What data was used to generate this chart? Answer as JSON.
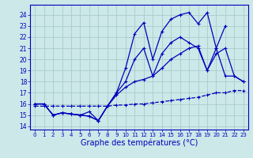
{
  "bg_color": "#cce8e8",
  "grid_color": "#aacccc",
  "line_color": "#0000bb",
  "xlabel": "Graphe des températures (°C)",
  "xlabel_fontsize": 7,
  "xlim": [
    -0.5,
    23.5
  ],
  "ylim": [
    13.7,
    24.9
  ],
  "yticks": [
    14,
    15,
    16,
    17,
    18,
    19,
    20,
    21,
    22,
    23,
    24
  ],
  "xtick_labels": [
    "0",
    "1",
    "2",
    "3",
    "4",
    "5",
    "6",
    "7",
    "8",
    "9",
    "10",
    "11",
    "12",
    "13",
    "14",
    "15",
    "16",
    "17",
    "18",
    "19",
    "20",
    "21",
    "22",
    "23"
  ],
  "series": [
    {
      "x": [
        0,
        1,
        2,
        3,
        4,
        5,
        6,
        7,
        8,
        9,
        10,
        11,
        12,
        13,
        14,
        15,
        16,
        17,
        18,
        19,
        20,
        21
      ],
      "y": [
        16.0,
        16.0,
        15.0,
        15.2,
        15.1,
        15.0,
        14.9,
        14.5,
        15.8,
        17.0,
        19.2,
        22.3,
        23.3,
        20.0,
        22.5,
        23.6,
        24.0,
        24.2,
        23.2,
        24.2,
        21.0,
        23.0
      ],
      "style": "solid"
    },
    {
      "x": [
        0,
        1,
        2,
        3,
        4,
        5,
        6,
        7,
        8,
        9,
        10,
        11,
        12,
        13,
        14,
        15,
        16,
        17,
        18,
        19,
        20,
        21,
        22,
        23
      ],
      "y": [
        16.0,
        16.0,
        15.0,
        15.2,
        15.1,
        15.0,
        14.9,
        14.5,
        15.8,
        17.0,
        18.0,
        20.0,
        21.0,
        18.5,
        20.5,
        21.5,
        22.0,
        21.5,
        21.0,
        19.0,
        20.5,
        21.0,
        18.5,
        18.0
      ],
      "style": "solid"
    },
    {
      "x": [
        0,
        1,
        2,
        3,
        4,
        5,
        6,
        7,
        8,
        9,
        10,
        11,
        12,
        13,
        14,
        15,
        16,
        17,
        18,
        19,
        20,
        21,
        22,
        23
      ],
      "y": [
        16.0,
        16.0,
        15.0,
        15.2,
        15.1,
        15.0,
        15.3,
        14.5,
        15.8,
        16.8,
        17.5,
        18.0,
        18.2,
        18.5,
        19.2,
        20.0,
        20.5,
        21.0,
        21.2,
        19.0,
        21.0,
        18.5,
        18.5,
        18.0
      ],
      "style": "solid"
    },
    {
      "x": [
        0,
        1,
        2,
        3,
        4,
        5,
        6,
        7,
        8,
        9,
        10,
        11,
        12,
        13,
        14,
        15,
        16,
        17,
        18,
        19,
        20,
        21,
        22,
        23
      ],
      "y": [
        15.8,
        15.8,
        15.8,
        15.8,
        15.8,
        15.8,
        15.8,
        15.8,
        15.8,
        15.9,
        15.9,
        16.0,
        16.0,
        16.1,
        16.2,
        16.3,
        16.4,
        16.5,
        16.6,
        16.8,
        17.0,
        17.0,
        17.2,
        17.2
      ],
      "style": "dashed"
    }
  ]
}
